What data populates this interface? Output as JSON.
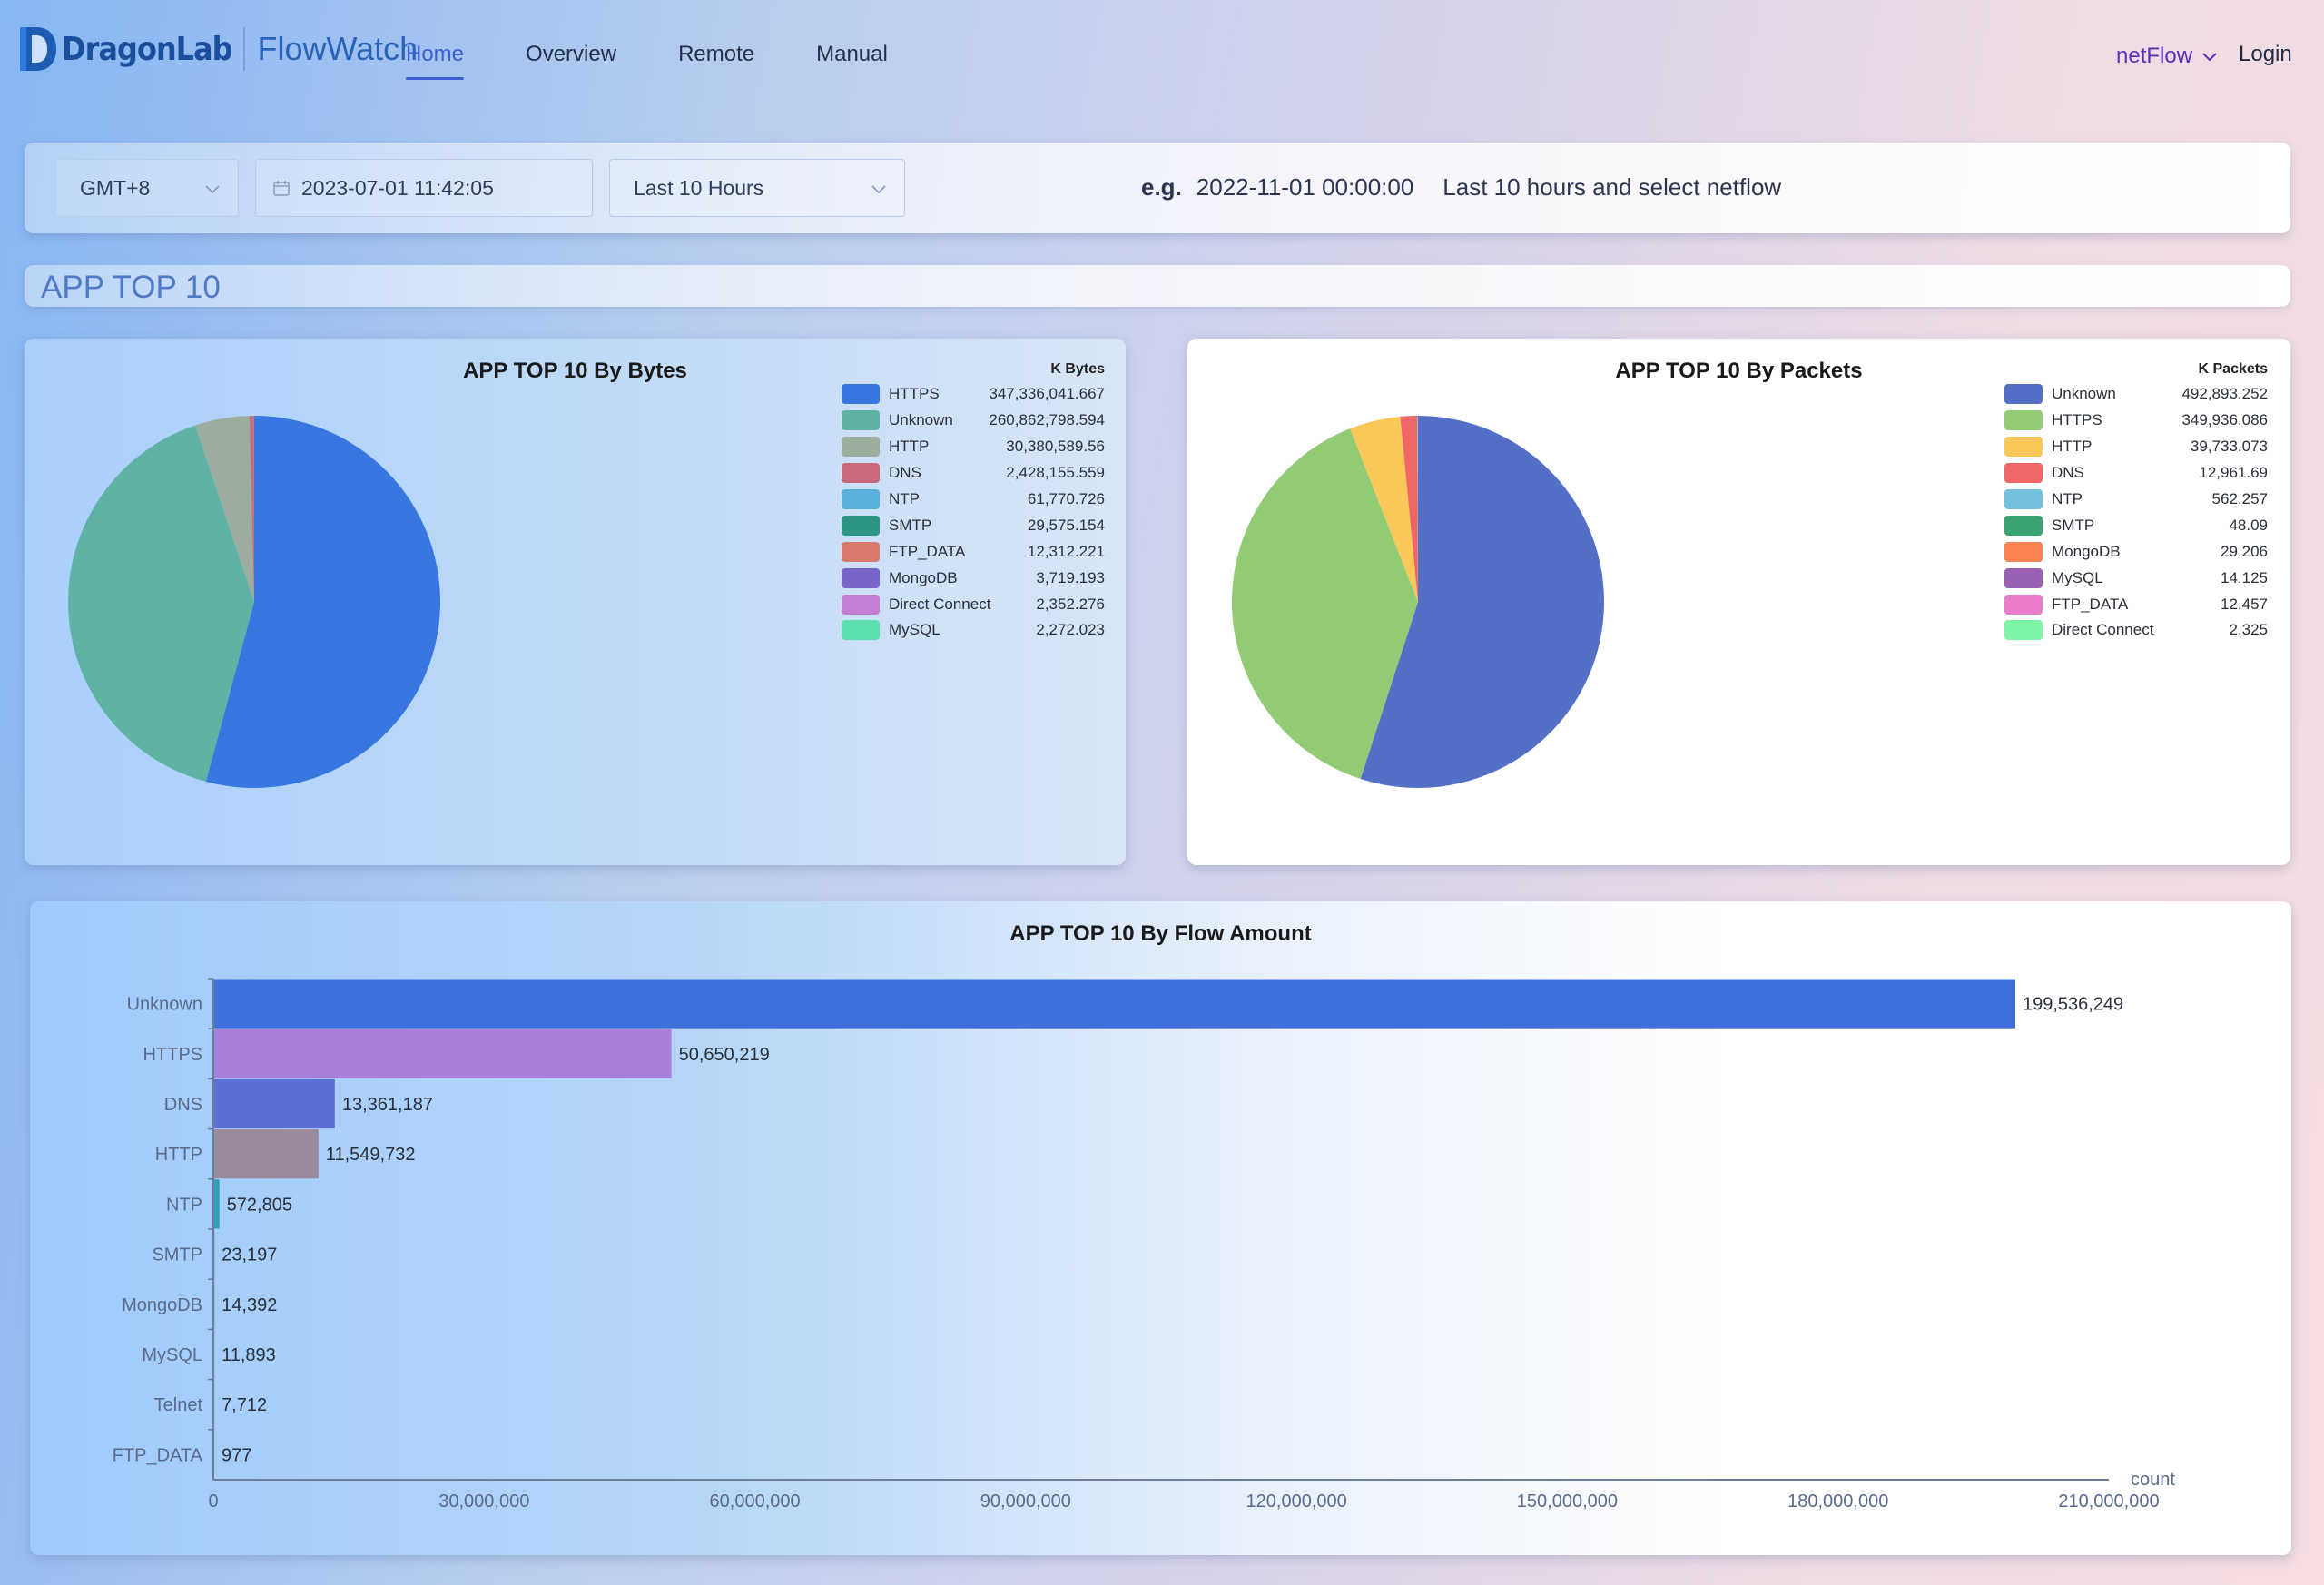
{
  "header": {
    "brand": "DragonLab",
    "product": "FlowWatch",
    "nav": [
      {
        "label": "Home",
        "active": true
      },
      {
        "label": "Overview",
        "active": false
      },
      {
        "label": "Remote",
        "active": false
      },
      {
        "label": "Manual",
        "active": false
      }
    ],
    "netflow_label": "netFlow",
    "login_label": "Login"
  },
  "filters": {
    "timezone": "GMT+8",
    "datetime": "2023-07-01 11:42:05",
    "range": "Last 10 Hours",
    "hint_prefix": "e.g.",
    "hint_example": "2022-11-01 00:00:00",
    "hint_text": "Last 10 hours and select netflow"
  },
  "section_title": "APP TOP 10",
  "chart_data": [
    {
      "type": "pie",
      "title": "APP TOP 10 By Bytes",
      "unit": "K Bytes",
      "legend_position": "right",
      "slices": [
        {
          "name": "HTTPS",
          "value": 347336041.667,
          "label": "347,336,041.667",
          "color": "#3777df"
        },
        {
          "name": "Unknown",
          "value": 260862798.594,
          "label": "260,862,798.594",
          "color": "#5fb3a4"
        },
        {
          "name": "HTTP",
          "value": 30380589.56,
          "label": "30,380,589.56",
          "color": "#9cad9e"
        },
        {
          "name": "DNS",
          "value": 2428155.559,
          "label": "2,428,155.559",
          "color": "#c9697c"
        },
        {
          "name": "NTP",
          "value": 61770.726,
          "label": "61,770.726",
          "color": "#5bb0dd"
        },
        {
          "name": "SMTP",
          "value": 29575.154,
          "label": "29,575.154",
          "color": "#2e9484"
        },
        {
          "name": "FTP_DATA",
          "value": 12312.221,
          "label": "12,312.221",
          "color": "#d87a6c"
        },
        {
          "name": "MongoDB",
          "value": 3719.193,
          "label": "3,719.193",
          "color": "#7a66c9"
        },
        {
          "name": "Direct Connect",
          "value": 2352.276,
          "label": "2,352.276",
          "color": "#c57ed6"
        },
        {
          "name": "MySQL",
          "value": 2272.023,
          "label": "2,272.023",
          "color": "#5edfb0"
        }
      ]
    },
    {
      "type": "pie",
      "title": "APP TOP 10 By Packets",
      "unit": "K Packets",
      "legend_position": "right",
      "slices": [
        {
          "name": "Unknown",
          "value": 492893.252,
          "label": "492,893.252",
          "color": "#5470c6"
        },
        {
          "name": "HTTPS",
          "value": 349936.086,
          "label": "349,936.086",
          "color": "#91cc75"
        },
        {
          "name": "HTTP",
          "value": 39733.073,
          "label": "39,733.073",
          "color": "#fac858"
        },
        {
          "name": "DNS",
          "value": 12961.69,
          "label": "12,961.69",
          "color": "#ee6666"
        },
        {
          "name": "NTP",
          "value": 562.257,
          "label": "562.257",
          "color": "#73c0de"
        },
        {
          "name": "SMTP",
          "value": 48.09,
          "label": "48.09",
          "color": "#3ba272"
        },
        {
          "name": "MongoDB",
          "value": 29.206,
          "label": "29.206",
          "color": "#fc8452"
        },
        {
          "name": "MySQL",
          "value": 14.125,
          "label": "14.125",
          "color": "#9a60b4"
        },
        {
          "name": "FTP_DATA",
          "value": 12.457,
          "label": "12.457",
          "color": "#ea7ccc"
        },
        {
          "name": "Direct Connect",
          "value": 2.325,
          "label": "2.325",
          "color": "#7df5a4"
        }
      ]
    },
    {
      "type": "bar",
      "orientation": "horizontal",
      "title": "APP TOP 10 By Flow Amount",
      "xlabel": "count",
      "xlim": [
        0,
        210000000
      ],
      "xticks": [
        0,
        30000000,
        60000000,
        90000000,
        120000000,
        150000000,
        180000000,
        210000000
      ],
      "xtick_labels": [
        "0",
        "30,000,000",
        "60,000,000",
        "90,000,000",
        "120,000,000",
        "150,000,000",
        "180,000,000",
        "210,000,000"
      ],
      "categories": [
        "Unknown",
        "HTTPS",
        "DNS",
        "HTTP",
        "NTP",
        "SMTP",
        "MongoDB",
        "MySQL",
        "Telnet",
        "FTP_DATA"
      ],
      "values": [
        199536249,
        50650219,
        13361187,
        11549732,
        572805,
        23197,
        14392,
        11893,
        7712,
        977
      ],
      "value_labels": [
        "199,536,249",
        "50,650,219",
        "13,361,187",
        "11,549,732",
        "572,805",
        "23,197",
        "14,392",
        "11,893",
        "7,712",
        "977"
      ],
      "colors": [
        "#3f6fd8",
        "#a97fdc",
        "#5b6fd6",
        "#9a8a9e",
        "#2ea0b8",
        "#4a7dd4",
        "#4a7dd4",
        "#4a7dd4",
        "#4a7dd4",
        "#4a7dd4"
      ]
    }
  ]
}
